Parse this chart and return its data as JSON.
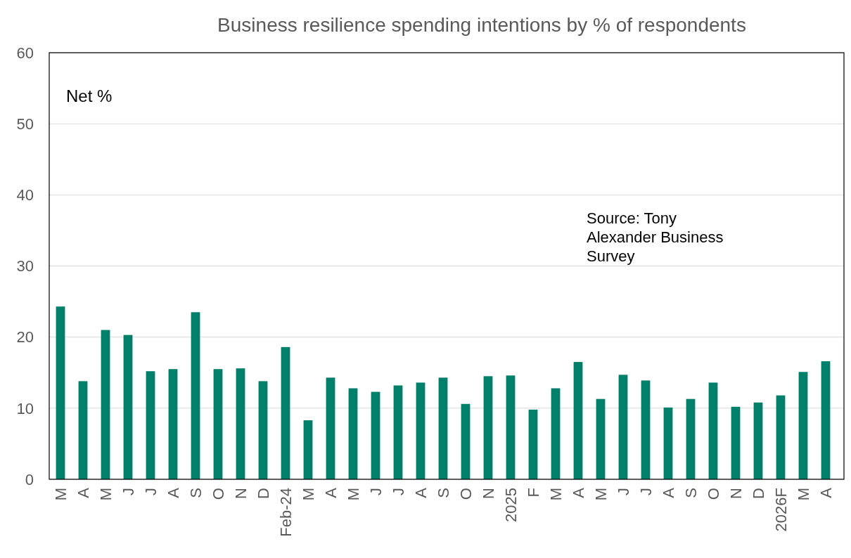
{
  "chart_data": {
    "type": "bar",
    "title": "Business resilience spending intentions by % of respondents",
    "categories": [
      "M",
      "A",
      "M",
      "J",
      "J",
      "A",
      "S",
      "O",
      "N",
      "D",
      "Feb-24",
      "M",
      "A",
      "M",
      "J",
      "J",
      "A",
      "S",
      "O",
      "N",
      "2025",
      "F",
      "M",
      "A",
      "M",
      "J",
      "J",
      "A",
      "S",
      "O",
      "N",
      "D",
      "2026F",
      "M",
      "A"
    ],
    "values": [
      24.3,
      13.8,
      21,
      20.3,
      15.2,
      15.5,
      23.5,
      15.5,
      15.6,
      13.8,
      18.6,
      8.3,
      14.3,
      12.8,
      12.3,
      13.2,
      13.6,
      14.3,
      10.6,
      14.5,
      14.6,
      9.8,
      12.8,
      16.5,
      11.3,
      14.7,
      13.9,
      10.1,
      11.3,
      13.6,
      10.2,
      10.8,
      11.8,
      15.1,
      16.6
    ],
    "color": "#00806a",
    "ylim": [
      0,
      60
    ],
    "yticks": [
      0,
      10,
      20,
      30,
      40,
      50,
      60
    ],
    "grid": "y",
    "annotations": [
      "Net %",
      "Source: Tony Alexander Business Survey"
    ]
  }
}
